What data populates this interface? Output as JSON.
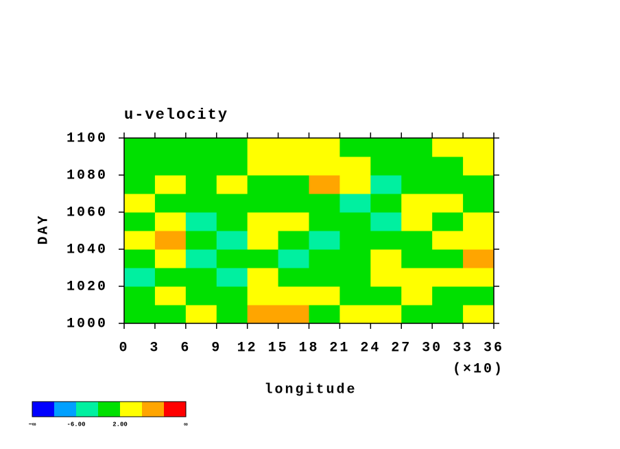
{
  "chart_data": {
    "type": "heatmap",
    "title": "u-velocity",
    "x_label": "longitude",
    "y_label": "DAY",
    "x_multiplier": "(×10)",
    "xlim": [
      0,
      36
    ],
    "ylim": [
      1000,
      1100
    ],
    "xticks": [
      0,
      3,
      6,
      9,
      12,
      15,
      18,
      21,
      24,
      27,
      30,
      33,
      36
    ],
    "yticks": [
      1000,
      1020,
      1040,
      1060,
      1080,
      1100
    ],
    "x": [
      1.5,
      4.5,
      7.5,
      10.5,
      13.5,
      16.5,
      19.5,
      22.5,
      25.5,
      28.5,
      31.5,
      34.5
    ],
    "y": [
      1005,
      1015,
      1025,
      1035,
      1045,
      1055,
      1065,
      1075,
      1085,
      1095
    ],
    "z": [
      [
        0,
        -2,
        3,
        1,
        6,
        8,
        1,
        3,
        2,
        0,
        1,
        2
      ],
      [
        -1,
        2,
        1,
        -2,
        4,
        5,
        2,
        1,
        -1,
        2,
        0,
        -2
      ],
      [
        -3,
        1,
        -2,
        -5,
        3,
        0,
        -2,
        0,
        3,
        5,
        4,
        3
      ],
      [
        1,
        3,
        -4,
        -1,
        1,
        -3,
        0,
        -2,
        2,
        0,
        -1,
        7
      ],
      [
        2,
        7,
        1,
        -3,
        2,
        0,
        -3,
        -1,
        -2,
        1,
        3,
        2
      ],
      [
        -1,
        2,
        -3,
        0,
        2,
        5,
        -1,
        1,
        -4,
        3,
        1,
        3
      ],
      [
        3,
        0,
        1,
        -2,
        1,
        0,
        -1,
        -3,
        1,
        2,
        4,
        1
      ],
      [
        1,
        2,
        -1,
        3,
        0,
        1,
        6,
        3,
        -3,
        -2,
        1,
        0
      ],
      [
        -2,
        -1,
        1,
        0,
        4,
        3,
        5,
        2,
        -2,
        -1,
        0,
        2
      ],
      [
        0,
        1,
        0,
        -1,
        3,
        2,
        3,
        1,
        -1,
        0,
        2,
        4
      ]
    ],
    "colorbar": {
      "colors": [
        "#0000ff",
        "#00a0ff",
        "#00f0a0",
        "#00e000",
        "#ffff00",
        "#ffa500",
        "#ff0000"
      ],
      "levels": [
        -10,
        -6,
        -2,
        2,
        6,
        10
      ],
      "low_label": "−∞",
      "high_label": "∞",
      "ticks": [
        {
          "value": -6,
          "label": "-6.00"
        },
        {
          "value": 2,
          "label": "2.00"
        }
      ]
    }
  }
}
